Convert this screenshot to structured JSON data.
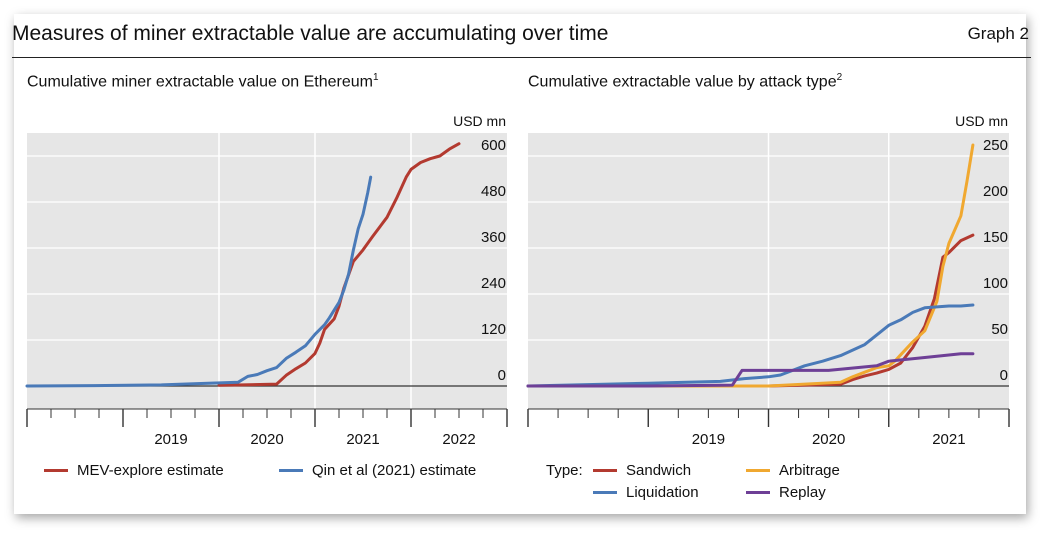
{
  "header": {
    "title": "Measures of miner extractable value are accumulating over time",
    "graph_number": "Graph 2"
  },
  "colors": {
    "red": "#b33a30",
    "blue": "#4a7ab8",
    "orange": "#f0a830",
    "purple": "#6e3f96",
    "plot_bg": "#e6e6e6"
  },
  "chart_data": [
    {
      "type": "line",
      "title": "Cumulative miner extractable value on Ethereum",
      "title_footnote": "1",
      "unit_label": "USD mn",
      "y_ticks": [
        0,
        120,
        240,
        360,
        480,
        600
      ],
      "ylim": [
        -60,
        660
      ],
      "xlim": [
        2018.0,
        2023.0
      ],
      "year_labels": [
        {
          "x": 2019.5,
          "label": "2019"
        },
        {
          "x": 2020.5,
          "label": "2020"
        },
        {
          "x": 2021.5,
          "label": "2021"
        },
        {
          "x": 2022.5,
          "label": "2022"
        }
      ],
      "year_separators": [
        2020.0,
        2021.0,
        2022.0
      ],
      "grid": "y",
      "legend_placement": "bottom",
      "series": [
        {
          "name": "MEV-explore estimate",
          "color": "#b33a30",
          "x": [
            2020.0,
            2020.25,
            2020.6,
            2020.7,
            2020.8,
            2020.9,
            2021.0,
            2021.05,
            2021.1,
            2021.2,
            2021.25,
            2021.3,
            2021.4,
            2021.45,
            2021.5,
            2021.6,
            2021.75,
            2021.85,
            2021.95,
            2022.0,
            2022.1,
            2022.2,
            2022.3,
            2022.4,
            2022.5
          ],
          "y": [
            2,
            3,
            5,
            28,
            45,
            60,
            85,
            112,
            148,
            175,
            208,
            255,
            325,
            340,
            355,
            390,
            440,
            490,
            545,
            565,
            583,
            593,
            600,
            618,
            632
          ]
        },
        {
          "name": "Qin et al (2021) estimate",
          "color": "#4a7ab8",
          "x": [
            2018.0,
            2018.7,
            2019.4,
            2020.2,
            2020.3,
            2020.4,
            2020.5,
            2020.6,
            2020.7,
            2020.8,
            2020.9,
            2021.0,
            2021.1,
            2021.15,
            2021.2,
            2021.25,
            2021.3,
            2021.35,
            2021.4,
            2021.45,
            2021.5,
            2021.55,
            2021.58
          ],
          "y": [
            0,
            1,
            3,
            10,
            25,
            30,
            40,
            48,
            72,
            88,
            105,
            135,
            160,
            178,
            198,
            218,
            250,
            292,
            355,
            410,
            448,
            505,
            545
          ]
        }
      ]
    },
    {
      "type": "line",
      "title": "Cumulative extractable value by attack type",
      "title_footnote": "2",
      "unit_label": "USD mn",
      "y_ticks": [
        0,
        50,
        100,
        150,
        200,
        250
      ],
      "ylim": [
        -25,
        275
      ],
      "xlim": [
        2018.0,
        2022.0
      ],
      "year_labels": [
        {
          "x": 2019.5,
          "label": "2019"
        },
        {
          "x": 2020.5,
          "label": "2020"
        },
        {
          "x": 2021.5,
          "label": "2021"
        }
      ],
      "year_separators": [
        2020.0,
        2021.0
      ],
      "grid": "y",
      "legend_placement": "bottom",
      "legend_type_label": "Type:",
      "series": [
        {
          "name": "Sandwich",
          "color": "#b33a30",
          "x": [
            2018.0,
            2019.0,
            2020.0,
            2020.6,
            2020.7,
            2020.8,
            2020.9,
            2021.0,
            2021.1,
            2021.2,
            2021.3,
            2021.38,
            2021.45,
            2021.5,
            2021.6,
            2021.7
          ],
          "y": [
            0,
            0,
            0,
            2,
            7,
            11,
            14,
            18,
            25,
            42,
            65,
            95,
            140,
            145,
            158,
            164
          ]
        },
        {
          "name": "Arbitrage",
          "color": "#f0a830",
          "x": [
            2018.0,
            2019.0,
            2020.0,
            2020.6,
            2020.7,
            2020.8,
            2020.9,
            2021.0,
            2021.05,
            2021.1,
            2021.2,
            2021.3,
            2021.4,
            2021.45,
            2021.5,
            2021.55,
            2021.6,
            2021.65,
            2021.7
          ],
          "y": [
            0,
            0,
            0,
            4,
            10,
            15,
            20,
            22,
            27,
            34,
            48,
            60,
            92,
            130,
            155,
            170,
            185,
            222,
            262
          ]
        },
        {
          "name": "Liquidation",
          "color": "#4a7ab8",
          "x": [
            2018.0,
            2019.0,
            2019.6,
            2019.8,
            2020.0,
            2020.1,
            2020.3,
            2020.45,
            2020.6,
            2020.8,
            2021.0,
            2021.1,
            2021.2,
            2021.3,
            2021.4,
            2021.5,
            2021.6,
            2021.7
          ],
          "y": [
            0,
            3,
            5,
            8,
            10,
            12,
            22,
            27,
            33,
            45,
            66,
            72,
            80,
            85,
            86,
            87,
            87,
            88
          ]
        },
        {
          "name": "Replay",
          "color": "#6e3f96",
          "x": [
            2018.0,
            2019.0,
            2019.7,
            2019.78,
            2020.0,
            2020.5,
            2020.9,
            2021.0,
            2021.3,
            2021.6,
            2021.7
          ],
          "y": [
            0,
            0,
            1,
            17,
            17,
            17,
            22,
            27,
            31,
            35,
            35
          ]
        }
      ]
    }
  ]
}
